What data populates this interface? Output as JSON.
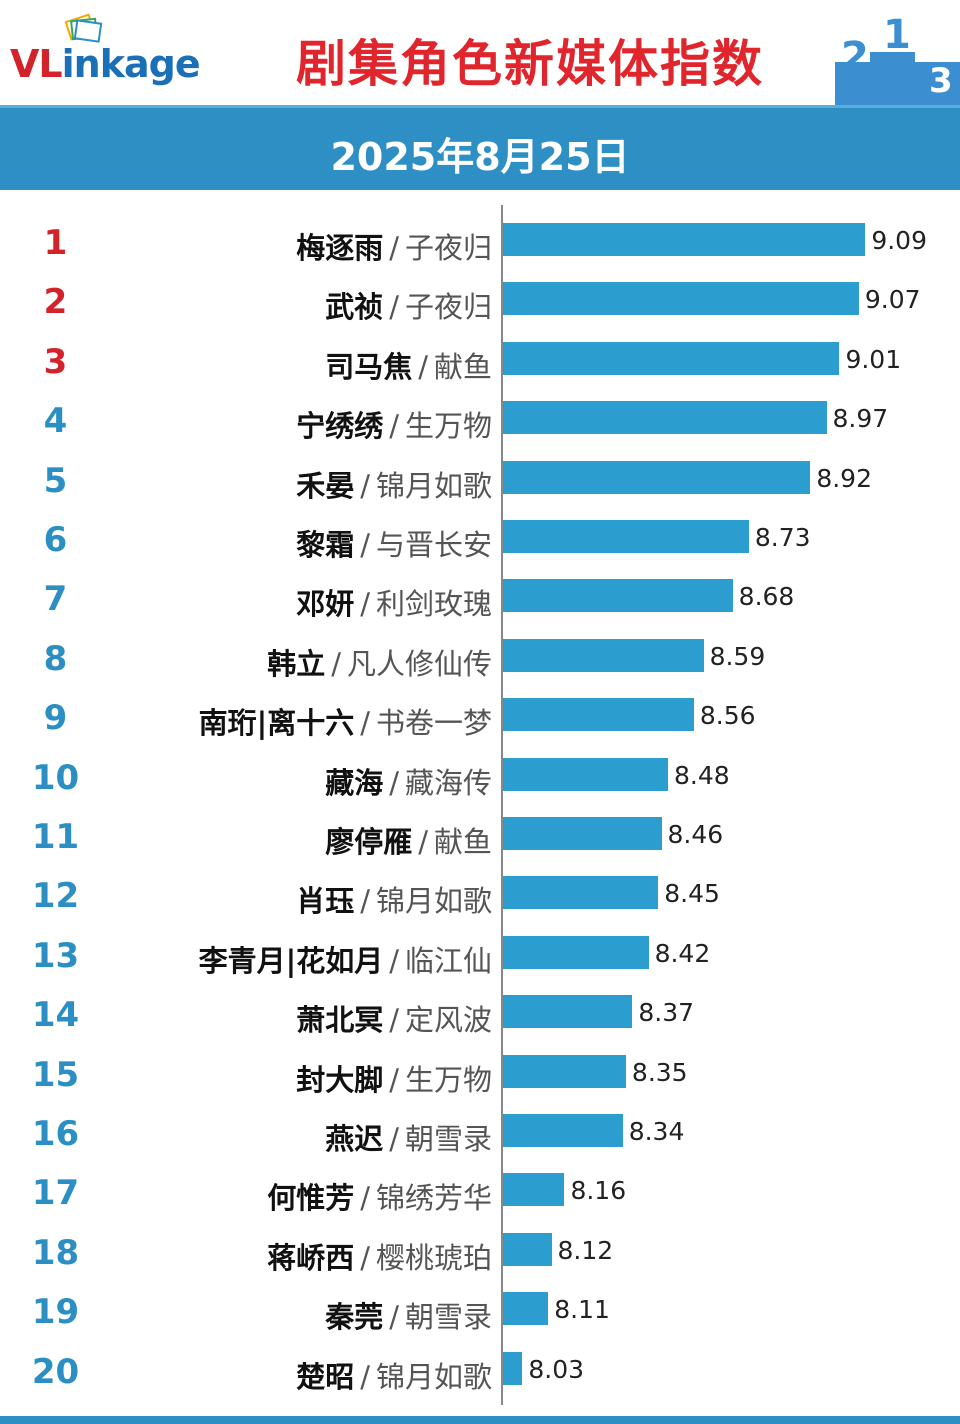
{
  "header": {
    "logo": {
      "part1": "VL",
      "part2": "inkage"
    },
    "title": "剧集角色新媒体指数",
    "podium_digits": [
      "2",
      "1",
      "3"
    ]
  },
  "date": "2025年8月25日",
  "colors": {
    "title_red": "#e0262c",
    "banner_blue": "#2e8fc4",
    "bar_blue": "#2b9ecf",
    "rank_red": "#d2232a",
    "rank_blue": "#2b8fc4"
  },
  "chart_data": {
    "type": "bar",
    "orientation": "horizontal",
    "title": "剧集角色新媒体指数",
    "xlim": [
      7.97,
      9.12
    ],
    "categories": [
      "梅逐雨",
      "武祯",
      "司马焦",
      "宁绣绣",
      "禾晏",
      "黎霜",
      "邓妍",
      "韩立",
      "南珩|离十六",
      "藏海",
      "廖停雁",
      "肖珏",
      "李青月|花如月",
      "萧北冥",
      "封大脚",
      "燕迟",
      "何惟芳",
      "蒋峤西",
      "秦莞",
      "楚昭"
    ],
    "ranks": [
      "1",
      "2",
      "3",
      "4",
      "5",
      "6",
      "7",
      "8",
      "9",
      "10",
      "11",
      "12",
      "13",
      "14",
      "15",
      "16",
      "17",
      "18",
      "19",
      "20"
    ],
    "dramas": [
      "子夜归",
      "子夜归",
      "献鱼",
      "生万物",
      "锦月如歌",
      "与晋长安",
      "利剑玫瑰",
      "凡人修仙传",
      "书卷一梦",
      "藏海传",
      "献鱼",
      "锦月如歌",
      "临江仙",
      "定风波",
      "生万物",
      "朝雪录",
      "锦绣芳华",
      "樱桃琥珀",
      "朝雪录",
      "锦月如歌"
    ],
    "values": [
      9.09,
      9.07,
      9.01,
      8.97,
      8.92,
      8.73,
      8.68,
      8.59,
      8.56,
      8.48,
      8.46,
      8.45,
      8.42,
      8.37,
      8.35,
      8.34,
      8.16,
      8.12,
      8.11,
      8.03
    ],
    "value_labels": [
      "9.09",
      "9.07",
      "9.01",
      "8.97",
      "8.92",
      "8.73",
      "8.68",
      "8.59",
      "8.56",
      "8.48",
      "8.46",
      "8.45",
      "8.42",
      "8.37",
      "8.35",
      "8.34",
      "8.16",
      "8.12",
      "8.11",
      "8.03"
    ],
    "top_ranks_highlighted": 3
  }
}
